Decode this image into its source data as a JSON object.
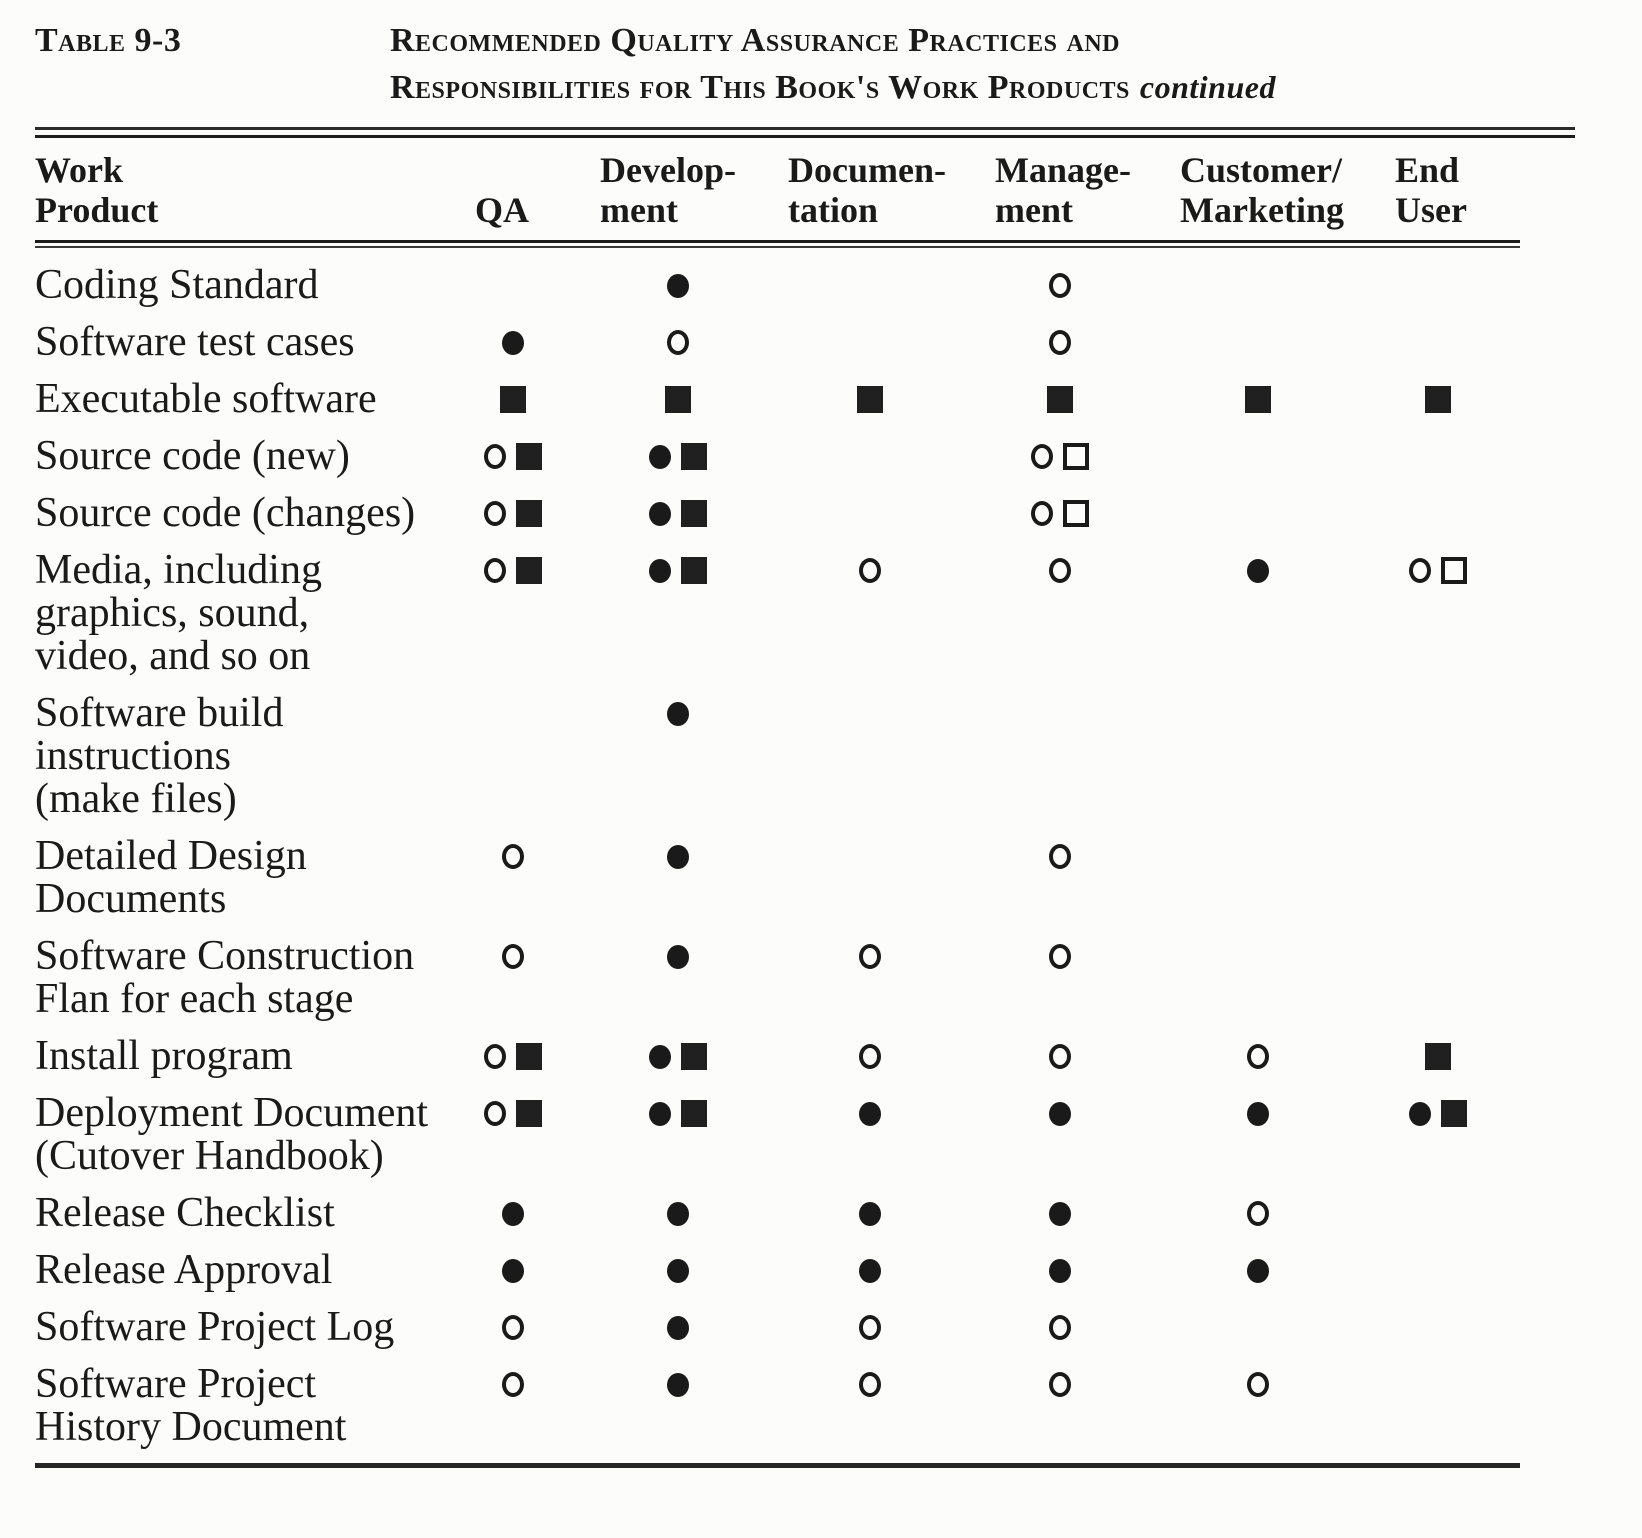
{
  "caption": {
    "label": "Table 9-3",
    "title_line1": "Recommended Quality Assurance Practices and",
    "title_line2": "Responsibilities for This Book's Work Products",
    "continued": "continued"
  },
  "symbols": {
    "filled-circle": "●",
    "open-circle": "○",
    "filled-square": "■",
    "open-square": "□"
  },
  "table": {
    "columns": [
      {
        "key": "product",
        "lines": [
          "Work",
          "Product"
        ]
      },
      {
        "key": "qa",
        "lines": [
          "QA"
        ]
      },
      {
        "key": "development",
        "lines": [
          "Develop-",
          "ment"
        ]
      },
      {
        "key": "documentation",
        "lines": [
          "Documen-",
          "tation"
        ]
      },
      {
        "key": "management",
        "lines": [
          "Manage-",
          "ment"
        ]
      },
      {
        "key": "customer_marketing",
        "lines": [
          "Customer/",
          "Marketing"
        ]
      },
      {
        "key": "end_user",
        "lines": [
          "End",
          "User"
        ]
      }
    ],
    "rows": [
      {
        "label_lines": [
          "Coding Standard"
        ],
        "cells": {
          "qa": [],
          "development": [
            "filled-circle"
          ],
          "documentation": [],
          "management": [
            "open-circle"
          ],
          "customer_marketing": [],
          "end_user": []
        }
      },
      {
        "label_lines": [
          "Software test cases"
        ],
        "cells": {
          "qa": [
            "filled-circle"
          ],
          "development": [
            "open-circle"
          ],
          "documentation": [],
          "management": [
            "open-circle"
          ],
          "customer_marketing": [],
          "end_user": []
        }
      },
      {
        "label_lines": [
          "Executable software"
        ],
        "cells": {
          "qa": [
            "filled-square"
          ],
          "development": [
            "filled-square"
          ],
          "documentation": [
            "filled-square"
          ],
          "management": [
            "filled-square"
          ],
          "customer_marketing": [
            "filled-square"
          ],
          "end_user": [
            "filled-square"
          ]
        }
      },
      {
        "label_lines": [
          "Source code (new)"
        ],
        "cells": {
          "qa": [
            "open-circle",
            "filled-square"
          ],
          "development": [
            "filled-circle",
            "filled-square"
          ],
          "documentation": [],
          "management": [
            "open-circle",
            "open-square"
          ],
          "customer_marketing": [],
          "end_user": []
        }
      },
      {
        "label_lines": [
          "Source code (changes)"
        ],
        "cells": {
          "qa": [
            "open-circle",
            "filled-square"
          ],
          "development": [
            "filled-circle",
            "filled-square"
          ],
          "documentation": [],
          "management": [
            "open-circle",
            "open-square"
          ],
          "customer_marketing": [],
          "end_user": []
        }
      },
      {
        "label_lines": [
          "Media, including",
          "graphics, sound,",
          "video, and so on"
        ],
        "cells": {
          "qa": [
            "open-circle",
            "filled-square"
          ],
          "development": [
            "filled-circle",
            "filled-square"
          ],
          "documentation": [
            "open-circle"
          ],
          "management": [
            "open-circle"
          ],
          "customer_marketing": [
            "filled-circle"
          ],
          "end_user": [
            "open-circle",
            "open-square"
          ]
        }
      },
      {
        "label_lines": [
          "Software  build",
          "instructions",
          "(make files)"
        ],
        "cells": {
          "qa": [],
          "development": [
            "filled-circle"
          ],
          "documentation": [],
          "management": [],
          "customer_marketing": [],
          "end_user": []
        }
      },
      {
        "label_lines": [
          "Detailed Design",
          "Documents"
        ],
        "cells": {
          "qa": [
            "open-circle"
          ],
          "development": [
            "filled-circle"
          ],
          "documentation": [],
          "management": [
            "open-circle"
          ],
          "customer_marketing": [],
          "end_user": []
        }
      },
      {
        "label_lines": [
          "Software  Construction",
          "Flan for each stage"
        ],
        "cells": {
          "qa": [
            "open-circle"
          ],
          "development": [
            "filled-circle"
          ],
          "documentation": [
            "open-circle"
          ],
          "management": [
            "open-circle"
          ],
          "customer_marketing": [],
          "end_user": []
        }
      },
      {
        "label_lines": [
          "Install program"
        ],
        "cells": {
          "qa": [
            "open-circle",
            "filled-square"
          ],
          "development": [
            "filled-circle",
            "filled-square"
          ],
          "documentation": [
            "open-circle"
          ],
          "management": [
            "open-circle"
          ],
          "customer_marketing": [
            "open-circle"
          ],
          "end_user": [
            "filled-square"
          ]
        }
      },
      {
        "label_lines": [
          "Deployment Document",
          "(Cutover  Handbook)"
        ],
        "cells": {
          "qa": [
            "open-circle",
            "filled-square"
          ],
          "development": [
            "filled-circle",
            "filled-square"
          ],
          "documentation": [
            "filled-circle"
          ],
          "management": [
            "filled-circle"
          ],
          "customer_marketing": [
            "filled-circle"
          ],
          "end_user": [
            "filled-circle",
            "filled-square"
          ]
        }
      },
      {
        "label_lines": [
          "Release  Checklist"
        ],
        "cells": {
          "qa": [
            "filled-circle"
          ],
          "development": [
            "filled-circle"
          ],
          "documentation": [
            "filled-circle"
          ],
          "management": [
            "filled-circle"
          ],
          "customer_marketing": [
            "open-circle"
          ],
          "end_user": []
        }
      },
      {
        "label_lines": [
          "Release  Approval"
        ],
        "cells": {
          "qa": [
            "filled-circle"
          ],
          "development": [
            "filled-circle"
          ],
          "documentation": [
            "filled-circle"
          ],
          "management": [
            "filled-circle"
          ],
          "customer_marketing": [
            "filled-circle"
          ],
          "end_user": []
        }
      },
      {
        "label_lines": [
          "Software Project Log"
        ],
        "cells": {
          "qa": [
            "open-circle"
          ],
          "development": [
            "filled-circle"
          ],
          "documentation": [
            "open-circle"
          ],
          "management": [
            "open-circle"
          ],
          "customer_marketing": [],
          "end_user": []
        }
      },
      {
        "label_lines": [
          "Software Project",
          "History Document"
        ],
        "cells": {
          "qa": [
            "open-circle"
          ],
          "development": [
            "filled-circle"
          ],
          "documentation": [
            "open-circle"
          ],
          "management": [
            "open-circle"
          ],
          "customer_marketing": [
            "open-circle"
          ],
          "end_user": []
        }
      }
    ]
  }
}
